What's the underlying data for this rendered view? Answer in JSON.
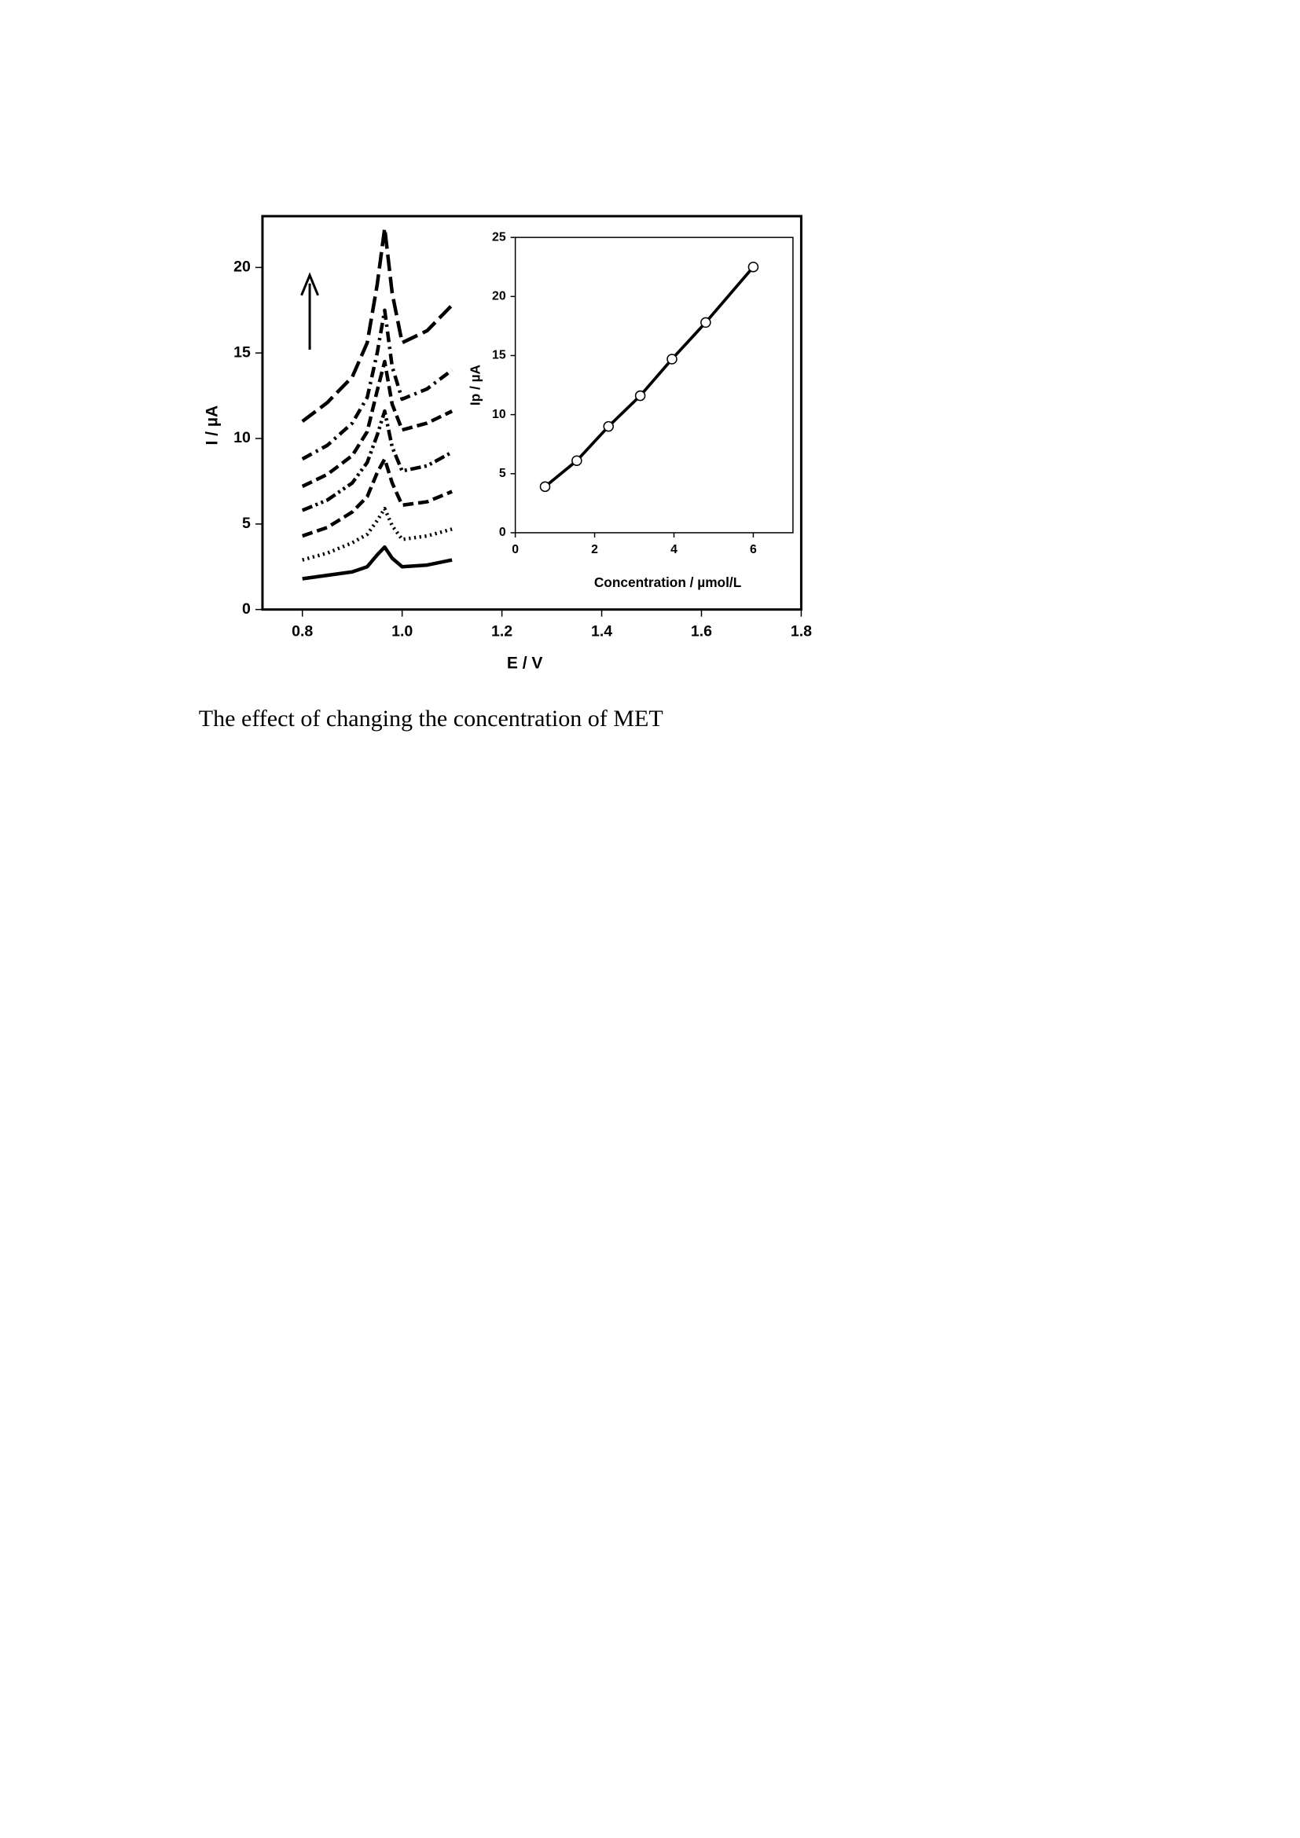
{
  "chart_data": [
    {
      "type": "line",
      "x_label": "E / V",
      "y_label": "I / µA",
      "x": [
        0.8,
        0.85,
        0.9,
        0.93,
        0.95,
        0.965,
        0.98,
        1.0,
        1.05,
        1.1
      ],
      "series": [
        {
          "color": "#000000",
          "dash": "solid",
          "values": [
            1.8,
            2.0,
            2.2,
            2.5,
            3.2,
            3.65,
            3.0,
            2.5,
            2.6,
            2.9
          ]
        },
        {
          "color": "#000000",
          "dash": "dotted",
          "values": [
            2.9,
            3.3,
            3.9,
            4.4,
            5.2,
            5.9,
            4.9,
            4.1,
            4.3,
            4.7
          ]
        },
        {
          "color": "#000000",
          "dash": "dashed",
          "values": [
            4.3,
            4.8,
            5.7,
            6.6,
            8.0,
            8.8,
            7.4,
            6.1,
            6.3,
            6.9
          ]
        },
        {
          "color": "#000000",
          "dash": "dash-dot-dot",
          "values": [
            5.8,
            6.4,
            7.4,
            8.6,
            10.2,
            11.6,
            9.5,
            8.1,
            8.4,
            9.2
          ]
        },
        {
          "color": "#000000",
          "dash": "dashed",
          "values": [
            7.2,
            7.9,
            9.0,
            10.4,
            12.8,
            14.5,
            12.0,
            10.5,
            10.9,
            11.6
          ]
        },
        {
          "color": "#000000",
          "dash": "dash-dot",
          "values": [
            8.8,
            9.6,
            10.9,
            12.4,
            15.0,
            17.5,
            14.2,
            12.3,
            12.9,
            14.0
          ]
        },
        {
          "color": "#000000",
          "dash": "long-dashed",
          "values": [
            11.0,
            12.1,
            13.6,
            15.6,
            19.0,
            22.3,
            18.5,
            15.6,
            16.3,
            17.8
          ]
        }
      ],
      "xlim": [
        0.72,
        1.8
      ],
      "xticks": [
        0.8,
        {
          "value": 1,
          "label": "1.0"
        },
        1.2,
        1.4,
        1.6,
        1.8
      ],
      "ylim": [
        0,
        23
      ],
      "yticks": [
        0,
        5,
        10,
        15,
        20
      ]
    },
    {
      "type": "scatter",
      "x_label": "Concentration / µmol/L",
      "y_label": "Ip / µA",
      "x": [
        0.75,
        1.55,
        2.35,
        3.15,
        3.95,
        4.8,
        6.0
      ],
      "values": [
        3.9,
        6.1,
        9.0,
        11.6,
        14.7,
        17.8,
        22.5
      ],
      "color": "#000000",
      "xlim": [
        0,
        7
      ],
      "xticks": [
        0,
        2,
        4,
        6
      ],
      "ylim": [
        0,
        25
      ],
      "yticks": [
        0,
        5,
        10,
        15,
        20,
        25
      ]
    }
  ],
  "caption": "The effect of changing the concentration of MET"
}
